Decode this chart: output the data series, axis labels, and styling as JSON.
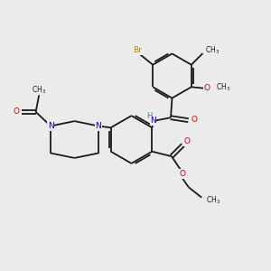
{
  "background_color": "#ebebeb",
  "bond_color": "#1a1a1a",
  "atom_colors": {
    "Br": "#b8860b",
    "N": "#0000cc",
    "O": "#cc0000",
    "H": "#2e8b8b",
    "C": "#1a1a1a"
  },
  "figsize": [
    3.0,
    3.0
  ],
  "dpi": 100,
  "xlim": [
    0,
    10
  ],
  "ylim": [
    0,
    10
  ]
}
